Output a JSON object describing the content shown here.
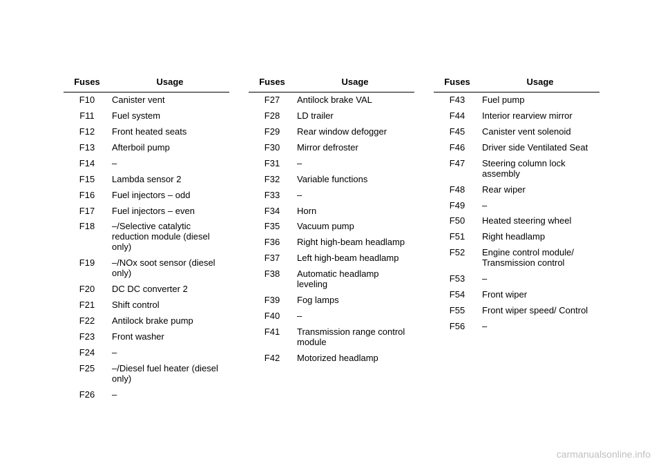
{
  "headers": {
    "fuses": "Fuses",
    "usage": "Usage"
  },
  "columns": [
    {
      "rows": [
        {
          "fuse": "F10",
          "usage": "Canister vent"
        },
        {
          "fuse": "F11",
          "usage": "Fuel system"
        },
        {
          "fuse": "F12",
          "usage": "Front heated seats"
        },
        {
          "fuse": "F13",
          "usage": "Afterboil pump"
        },
        {
          "fuse": "F14",
          "usage": "–"
        },
        {
          "fuse": "F15",
          "usage": "Lambda sensor 2"
        },
        {
          "fuse": "F16",
          "usage": "Fuel injectors – odd"
        },
        {
          "fuse": "F17",
          "usage": "Fuel injectors – even"
        },
        {
          "fuse": "F18",
          "usage": "–/Selective catalytic reduction module (diesel only)"
        },
        {
          "fuse": "F19",
          "usage": "–/NOx soot sensor (diesel only)"
        },
        {
          "fuse": "F20",
          "usage": "DC DC converter 2"
        },
        {
          "fuse": "F21",
          "usage": "Shift control"
        },
        {
          "fuse": "F22",
          "usage": "Antilock brake pump"
        },
        {
          "fuse": "F23",
          "usage": "Front washer"
        },
        {
          "fuse": "F24",
          "usage": "–"
        },
        {
          "fuse": "F25",
          "usage": "–/Diesel fuel heater (diesel only)"
        },
        {
          "fuse": "F26",
          "usage": "–"
        }
      ]
    },
    {
      "rows": [
        {
          "fuse": "F27",
          "usage": "Antilock brake VAL"
        },
        {
          "fuse": "F28",
          "usage": "LD trailer"
        },
        {
          "fuse": "F29",
          "usage": "Rear window defogger"
        },
        {
          "fuse": "F30",
          "usage": "Mirror defroster"
        },
        {
          "fuse": "F31",
          "usage": "–"
        },
        {
          "fuse": "F32",
          "usage": "Variable functions"
        },
        {
          "fuse": "F33",
          "usage": "–"
        },
        {
          "fuse": "F34",
          "usage": "Horn"
        },
        {
          "fuse": "F35",
          "usage": "Vacuum pump"
        },
        {
          "fuse": "F36",
          "usage": "Right high-beam headlamp"
        },
        {
          "fuse": "F37",
          "usage": "Left high-beam headlamp"
        },
        {
          "fuse": "F38",
          "usage": "Automatic headlamp leveling"
        },
        {
          "fuse": "F39",
          "usage": "Fog lamps"
        },
        {
          "fuse": "F40",
          "usage": "–"
        },
        {
          "fuse": "F41",
          "usage": "Transmission range control module"
        },
        {
          "fuse": "F42",
          "usage": "Motorized headlamp"
        }
      ]
    },
    {
      "rows": [
        {
          "fuse": "F43",
          "usage": "Fuel pump"
        },
        {
          "fuse": "F44",
          "usage": "Interior rearview mirror"
        },
        {
          "fuse": "F45",
          "usage": "Canister vent solenoid"
        },
        {
          "fuse": "F46",
          "usage": "Driver side Ventilated Seat"
        },
        {
          "fuse": "F47",
          "usage": "Steering column lock assembly"
        },
        {
          "fuse": "F48",
          "usage": "Rear wiper"
        },
        {
          "fuse": "F49",
          "usage": "–"
        },
        {
          "fuse": "F50",
          "usage": "Heated steering wheel"
        },
        {
          "fuse": "F51",
          "usage": "Right headlamp"
        },
        {
          "fuse": "F52",
          "usage": "Engine control module/ Transmission control"
        },
        {
          "fuse": "F53",
          "usage": "–"
        },
        {
          "fuse": "F54",
          "usage": "Front wiper"
        },
        {
          "fuse": "F55",
          "usage": "Front wiper speed/ Control"
        },
        {
          "fuse": "F56",
          "usage": "–"
        }
      ]
    }
  ],
  "watermark": "carmanualsonline.info"
}
